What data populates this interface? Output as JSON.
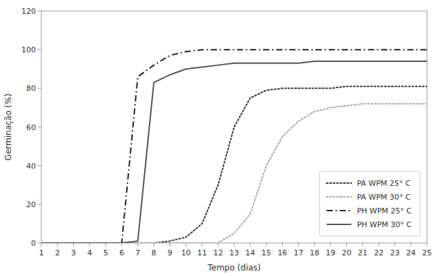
{
  "chart_data": {
    "type": "line",
    "xlabel": "Tempo (dias)",
    "ylabel": "Germinação (%)",
    "x": [
      1,
      2,
      3,
      4,
      5,
      6,
      7,
      8,
      9,
      10,
      11,
      12,
      13,
      14,
      15,
      16,
      17,
      18,
      19,
      20,
      21,
      22,
      23,
      24,
      25
    ],
    "xlim": [
      1,
      25
    ],
    "ylim": [
      0,
      120
    ],
    "xticks": [
      1,
      2,
      3,
      4,
      5,
      6,
      7,
      8,
      9,
      10,
      11,
      12,
      13,
      14,
      15,
      16,
      17,
      18,
      19,
      20,
      21,
      22,
      23,
      24,
      25
    ],
    "yticks": [
      0,
      20,
      40,
      60,
      80,
      100,
      120
    ],
    "grid": false,
    "legend": "lower right",
    "series": [
      {
        "name": "PA WPM 25° C",
        "color": "#333333",
        "line_style": "dotted",
        "values": [
          0,
          0,
          0,
          0,
          0,
          0,
          0,
          0,
          1,
          3,
          10,
          30,
          60,
          75,
          79,
          80,
          80,
          80,
          80,
          81,
          81,
          81,
          81,
          81,
          81
        ]
      },
      {
        "name": "PA WPM 30° C",
        "color": "#aaaaaa",
        "line_style": "dotted",
        "values": [
          0,
          0,
          0,
          0,
          0,
          0,
          0,
          0,
          0,
          0,
          0,
          0,
          5,
          15,
          40,
          55,
          63,
          68,
          70,
          71,
          72,
          72,
          72,
          72,
          72
        ]
      },
      {
        "name": "PH WPM 25° C",
        "color": "#222222",
        "line_style": "dashdot",
        "values": [
          0,
          0,
          0,
          0,
          0,
          0,
          86,
          92,
          97,
          99,
          100,
          100,
          100,
          100,
          100,
          100,
          100,
          100,
          100,
          100,
          100,
          100,
          100,
          100,
          100
        ]
      },
      {
        "name": "PH WPM 30° C",
        "color": "#555555",
        "line_style": "solid",
        "values": [
          0,
          0,
          0,
          0,
          0,
          0,
          1,
          83,
          87,
          90,
          91,
          92,
          93,
          93,
          93,
          93,
          93,
          94,
          94,
          94,
          94,
          94,
          94,
          94,
          94
        ]
      }
    ]
  }
}
